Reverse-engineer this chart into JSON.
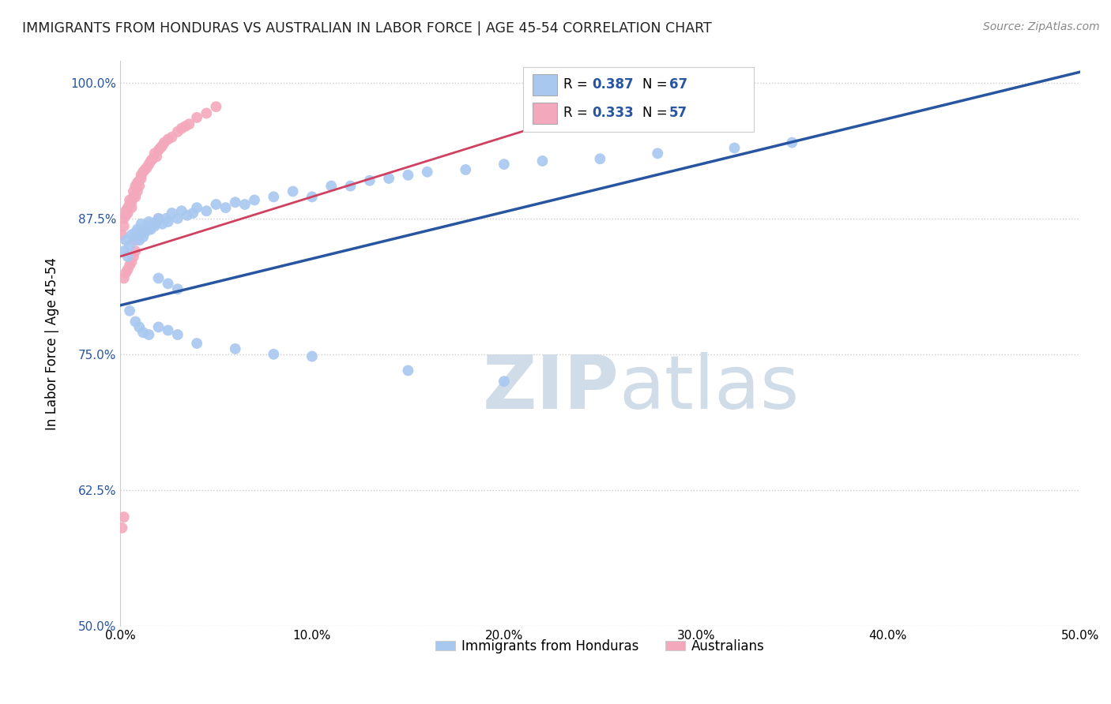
{
  "title": "IMMIGRANTS FROM HONDURAS VS AUSTRALIAN IN LABOR FORCE | AGE 45-54 CORRELATION CHART",
  "source": "Source: ZipAtlas.com",
  "ylabel": "In Labor Force | Age 45-54",
  "xlim": [
    0.0,
    0.5
  ],
  "ylim": [
    0.5,
    1.02
  ],
  "yticks": [
    0.5,
    0.625,
    0.75,
    0.875,
    1.0
  ],
  "ytick_labels": [
    "50.0%",
    "62.5%",
    "75.0%",
    "87.5%",
    "100.0%"
  ],
  "xticks": [
    0.0,
    0.1,
    0.2,
    0.3,
    0.4,
    0.5
  ],
  "xtick_labels": [
    "0.0%",
    "10.0%",
    "20.0%",
    "30.0%",
    "40.0%",
    "50.0%"
  ],
  "legend_label_blue": "Immigrants from Honduras",
  "legend_label_pink": "Australians",
  "blue_color": "#A8C8F0",
  "pink_color": "#F4A8BC",
  "blue_line_color": "#2855A0",
  "pink_line_color": "#D04060",
  "watermark_zip": "ZIP",
  "watermark_atlas": "atlas",
  "title_color": "#222222",
  "blue_scatter_x": [
    0.002,
    0.003,
    0.004,
    0.005,
    0.006,
    0.007,
    0.008,
    0.009,
    0.01,
    0.011,
    0.012,
    0.013,
    0.014,
    0.015,
    0.016,
    0.017,
    0.018,
    0.019,
    0.02,
    0.022,
    0.024,
    0.025,
    0.027,
    0.03,
    0.032,
    0.035,
    0.038,
    0.04,
    0.045,
    0.05,
    0.055,
    0.06,
    0.065,
    0.07,
    0.08,
    0.09,
    0.1,
    0.11,
    0.12,
    0.13,
    0.14,
    0.15,
    0.16,
    0.18,
    0.2,
    0.22,
    0.25,
    0.28,
    0.32,
    0.35,
    0.005,
    0.008,
    0.01,
    0.012,
    0.015,
    0.02,
    0.025,
    0.03,
    0.04,
    0.06,
    0.08,
    0.1,
    0.15,
    0.2,
    0.02,
    0.025,
    0.03
  ],
  "blue_scatter_y": [
    0.845,
    0.855,
    0.84,
    0.85,
    0.86,
    0.858,
    0.862,
    0.865,
    0.855,
    0.87,
    0.858,
    0.862,
    0.868,
    0.872,
    0.865,
    0.87,
    0.868,
    0.872,
    0.875,
    0.87,
    0.875,
    0.872,
    0.88,
    0.875,
    0.882,
    0.878,
    0.88,
    0.885,
    0.882,
    0.888,
    0.885,
    0.89,
    0.888,
    0.892,
    0.895,
    0.9,
    0.895,
    0.905,
    0.905,
    0.91,
    0.912,
    0.915,
    0.918,
    0.92,
    0.925,
    0.928,
    0.93,
    0.935,
    0.94,
    0.945,
    0.79,
    0.78,
    0.775,
    0.77,
    0.768,
    0.775,
    0.772,
    0.768,
    0.76,
    0.755,
    0.75,
    0.748,
    0.735,
    0.725,
    0.82,
    0.815,
    0.81
  ],
  "pink_scatter_x": [
    0.001,
    0.002,
    0.002,
    0.003,
    0.003,
    0.004,
    0.004,
    0.005,
    0.005,
    0.006,
    0.006,
    0.007,
    0.007,
    0.008,
    0.008,
    0.009,
    0.009,
    0.01,
    0.01,
    0.011,
    0.011,
    0.012,
    0.013,
    0.014,
    0.015,
    0.016,
    0.017,
    0.018,
    0.019,
    0.02,
    0.021,
    0.022,
    0.023,
    0.025,
    0.027,
    0.03,
    0.032,
    0.034,
    0.036,
    0.04,
    0.045,
    0.05,
    0.008,
    0.01,
    0.012,
    0.015,
    0.018,
    0.02,
    0.002,
    0.003,
    0.004,
    0.005,
    0.006,
    0.007,
    0.008,
    0.001,
    0.002
  ],
  "pink_scatter_y": [
    0.86,
    0.875,
    0.868,
    0.882,
    0.878,
    0.885,
    0.88,
    0.888,
    0.892,
    0.885,
    0.89,
    0.895,
    0.9,
    0.895,
    0.905,
    0.9,
    0.908,
    0.905,
    0.91,
    0.912,
    0.915,
    0.918,
    0.92,
    0.922,
    0.925,
    0.928,
    0.93,
    0.935,
    0.932,
    0.938,
    0.94,
    0.942,
    0.945,
    0.948,
    0.95,
    0.955,
    0.958,
    0.96,
    0.962,
    0.968,
    0.972,
    0.978,
    0.855,
    0.858,
    0.862,
    0.865,
    0.87,
    0.875,
    0.82,
    0.825,
    0.828,
    0.832,
    0.835,
    0.84,
    0.845,
    0.59,
    0.6
  ],
  "blue_line_x": [
    0.0,
    0.5
  ],
  "blue_line_y": [
    0.795,
    1.01
  ],
  "pink_line_x": [
    0.0,
    0.3
  ],
  "pink_line_y": [
    0.84,
    1.005
  ]
}
